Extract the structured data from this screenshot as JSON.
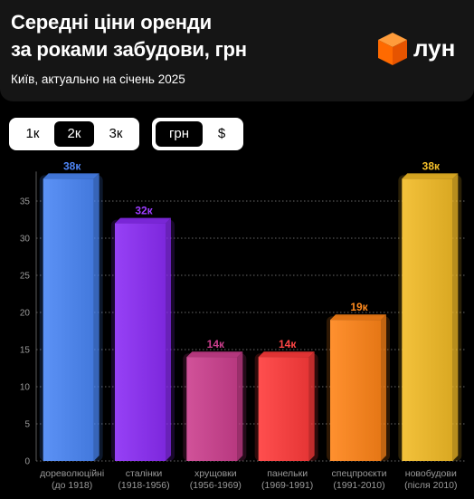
{
  "header": {
    "title_line1": "Середні ціни оренди",
    "title_line2": "за роками забудови, грн",
    "subtitle": "Київ, актуально на січень 2025",
    "brand": "лун"
  },
  "controls": {
    "rooms": [
      {
        "label": "1к",
        "active": false
      },
      {
        "label": "2к",
        "active": true
      },
      {
        "label": "3к",
        "active": false
      }
    ],
    "currency": [
      {
        "label": "грн",
        "active": true
      },
      {
        "label": "$",
        "active": false
      }
    ]
  },
  "colors": {
    "background": "#000000",
    "header": "#151515",
    "logo": "#ff6a00"
  },
  "chart_data": {
    "type": "bar",
    "categories": [
      [
        "дореволюційні",
        "(до 1918)"
      ],
      [
        "сталінки",
        "(1918-1956)"
      ],
      [
        "хрущовки",
        "(1956-1969)"
      ],
      [
        "панельки",
        "(1969-1991)"
      ],
      [
        "спецпроєкти",
        "(1991-2010)"
      ],
      [
        "новобудови",
        "(після 2010)"
      ]
    ],
    "values": [
      38,
      32,
      14,
      14,
      19,
      38
    ],
    "data_labels": [
      "38к",
      "32к",
      "14к",
      "14к",
      "19к",
      "38к"
    ],
    "colors": [
      "#4a86f5",
      "#8b2cf5",
      "#cc3f8e",
      "#ff3b3b",
      "#ff8418",
      "#f2bb26"
    ],
    "label_colors": [
      "#4f86f7",
      "#9d3cff",
      "#cc3f8e",
      "#ff4646",
      "#ff8a1e",
      "#f5c02a"
    ],
    "yticks": [
      0,
      5,
      10,
      15,
      20,
      25,
      30,
      35
    ],
    "ylim": [
      0,
      38
    ],
    "grid": true
  }
}
